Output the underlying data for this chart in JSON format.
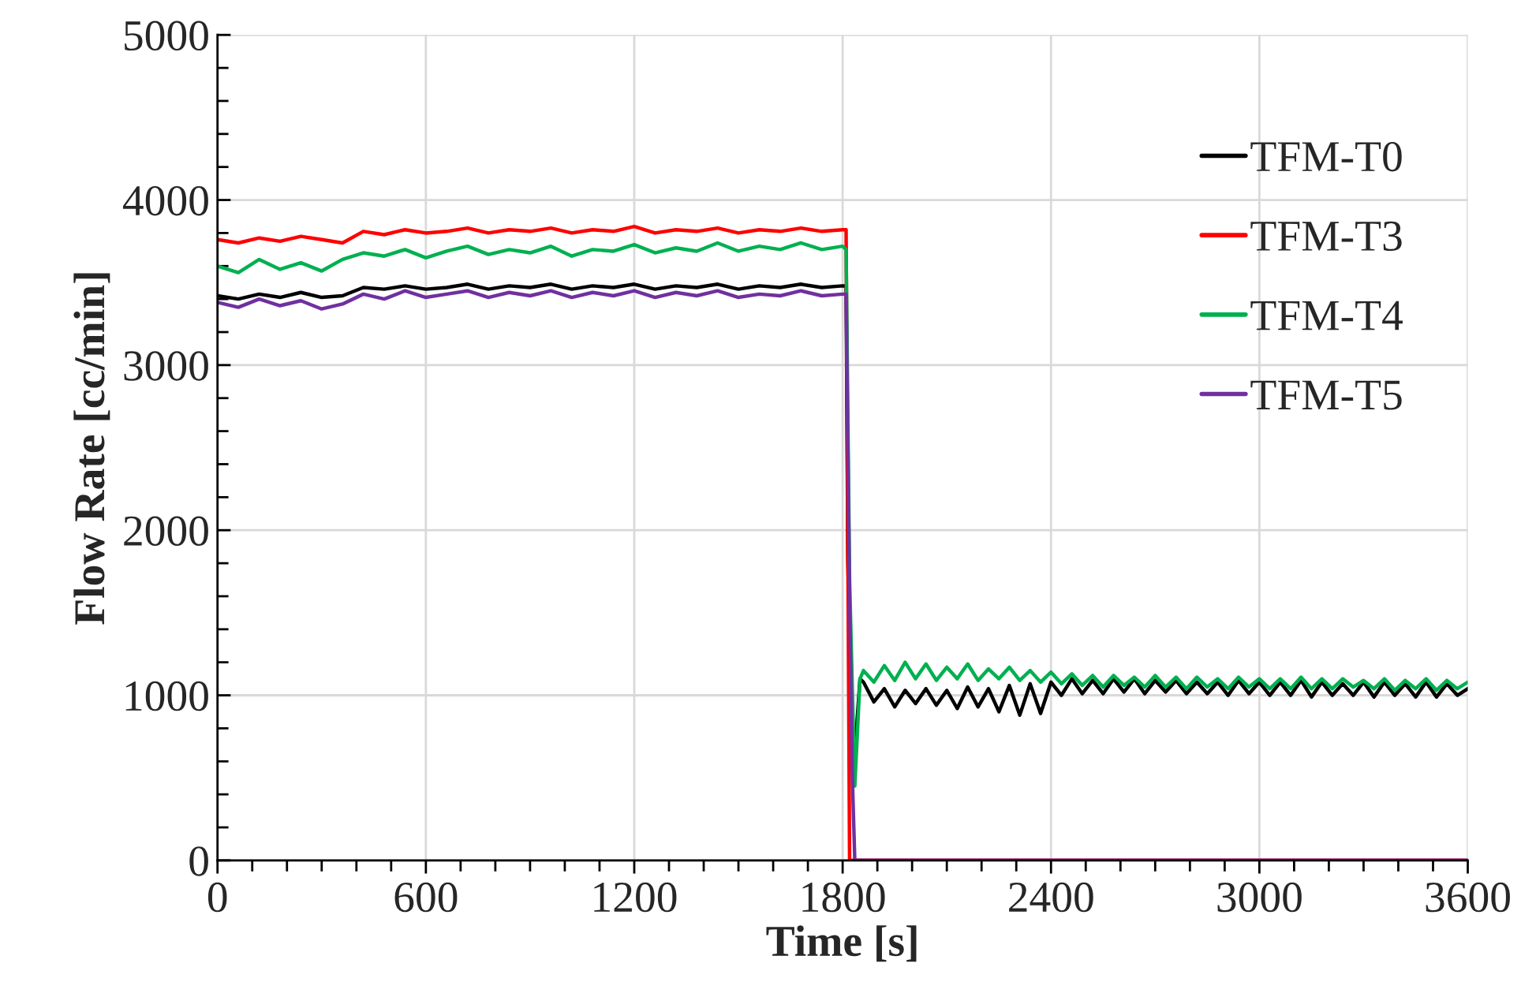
{
  "chart_data": {
    "type": "line",
    "xlabel": "Time [s]",
    "ylabel": "Flow Rate [cc/min]",
    "xlim": [
      0,
      3600
    ],
    "ylim": [
      0,
      5000
    ],
    "xticks": [
      0,
      {
        "value": 100,
        "label": null
      },
      {
        "value": 200,
        "label": null
      },
      {
        "value": 300,
        "label": null
      },
      {
        "value": 400,
        "label": null
      },
      {
        "value": 500,
        "label": null
      },
      600,
      {
        "value": 700,
        "label": null
      },
      {
        "value": 800,
        "label": null
      },
      {
        "value": 900,
        "label": null
      },
      {
        "value": 1000,
        "label": null
      },
      {
        "value": 1100,
        "label": null
      },
      1200,
      {
        "value": 1300,
        "label": null
      },
      {
        "value": 1400,
        "label": null
      },
      {
        "value": 1500,
        "label": null
      },
      {
        "value": 1600,
        "label": null
      },
      {
        "value": 1700,
        "label": null
      },
      1800,
      {
        "value": 1900,
        "label": null
      },
      {
        "value": 2000,
        "label": null
      },
      {
        "value": 2100,
        "label": null
      },
      {
        "value": 2200,
        "label": null
      },
      {
        "value": 2300,
        "label": null
      },
      2400,
      {
        "value": 2500,
        "label": null
      },
      {
        "value": 2600,
        "label": null
      },
      {
        "value": 2700,
        "label": null
      },
      {
        "value": 2800,
        "label": null
      },
      {
        "value": 2900,
        "label": null
      },
      3000,
      {
        "value": 3100,
        "label": null
      },
      {
        "value": 3200,
        "label": null
      },
      {
        "value": 3300,
        "label": null
      },
      {
        "value": 3400,
        "label": null
      },
      {
        "value": 3500,
        "label": null
      },
      3600
    ],
    "yticks": [
      0,
      {
        "value": 200,
        "label": null
      },
      {
        "value": 400,
        "label": null
      },
      {
        "value": 600,
        "label": null
      },
      {
        "value": 800,
        "label": null
      },
      1000,
      {
        "value": 1200,
        "label": null
      },
      {
        "value": 1400,
        "label": null
      },
      {
        "value": 1600,
        "label": null
      },
      {
        "value": 1800,
        "label": null
      },
      2000,
      {
        "value": 2200,
        "label": null
      },
      {
        "value": 2400,
        "label": null
      },
      {
        "value": 2600,
        "label": null
      },
      {
        "value": 2800,
        "label": null
      },
      3000,
      {
        "value": 3200,
        "label": null
      },
      {
        "value": 3400,
        "label": null
      },
      {
        "value": 3600,
        "label": null
      },
      {
        "value": 3800,
        "label": null
      },
      4000,
      {
        "value": 4200,
        "label": null
      },
      {
        "value": 4400,
        "label": null
      },
      {
        "value": 4600,
        "label": null
      },
      {
        "value": 4800,
        "label": null
      },
      5000
    ],
    "grid": true,
    "legend": "top right",
    "marker": "none",
    "line_style": "solid",
    "series": [
      {
        "name": "TFM-T0",
        "color": "#000000",
        "x": [
          0,
          60,
          120,
          180,
          240,
          300,
          360,
          420,
          480,
          540,
          600,
          660,
          720,
          780,
          840,
          900,
          960,
          1020,
          1080,
          1140,
          1200,
          1260,
          1320,
          1380,
          1440,
          1500,
          1560,
          1620,
          1680,
          1740,
          1800,
          1810,
          1815,
          1830,
          1850,
          1860,
          1890,
          1920,
          1950,
          1980,
          2010,
          2040,
          2070,
          2100,
          2130,
          2160,
          2190,
          2220,
          2250,
          2280,
          2310,
          2340,
          2370,
          2400,
          2430,
          2460,
          2490,
          2520,
          2550,
          2580,
          2610,
          2640,
          2670,
          2700,
          2730,
          2760,
          2790,
          2820,
          2850,
          2880,
          2910,
          2940,
          2970,
          3000,
          3030,
          3060,
          3090,
          3120,
          3150,
          3180,
          3210,
          3240,
          3270,
          3300,
          3330,
          3360,
          3390,
          3420,
          3450,
          3480,
          3510,
          3540,
          3570,
          3600
        ],
        "values": [
          3420,
          3400,
          3430,
          3410,
          3440,
          3410,
          3420,
          3470,
          3460,
          3480,
          3460,
          3470,
          3490,
          3460,
          3480,
          3470,
          3490,
          3460,
          3480,
          3470,
          3490,
          3460,
          3480,
          3470,
          3490,
          3460,
          3480,
          3470,
          3490,
          3470,
          3480,
          3480,
          1820,
          500,
          1100,
          1080,
          960,
          1040,
          930,
          1030,
          950,
          1040,
          940,
          1030,
          920,
          1050,
          930,
          1040,
          900,
          1060,
          880,
          1070,
          890,
          1080,
          1000,
          1100,
          1010,
          1090,
          1010,
          1100,
          1020,
          1100,
          1010,
          1090,
          1020,
          1090,
          1010,
          1080,
          1010,
          1080,
          1000,
          1090,
          1010,
          1080,
          1000,
          1080,
          1000,
          1090,
          990,
          1080,
          1000,
          1070,
          1000,
          1080,
          990,
          1080,
          1000,
          1070,
          990,
          1080,
          990,
          1070,
          1000,
          1040
        ]
      },
      {
        "name": "TFM-T3",
        "color": "#ff0000",
        "x": [
          0,
          60,
          120,
          180,
          240,
          300,
          360,
          420,
          480,
          540,
          600,
          660,
          720,
          780,
          840,
          900,
          960,
          1020,
          1080,
          1140,
          1200,
          1260,
          1320,
          1380,
          1440,
          1500,
          1560,
          1620,
          1680,
          1740,
          1800,
          1810,
          1820,
          3600
        ],
        "values": [
          3760,
          3740,
          3770,
          3750,
          3780,
          3760,
          3740,
          3810,
          3790,
          3820,
          3800,
          3810,
          3830,
          3800,
          3820,
          3810,
          3830,
          3800,
          3820,
          3810,
          3840,
          3800,
          3820,
          3810,
          3830,
          3800,
          3820,
          3810,
          3830,
          3810,
          3820,
          3820,
          0,
          0
        ]
      },
      {
        "name": "TFM-T4",
        "color": "#00b050",
        "x": [
          0,
          60,
          120,
          180,
          240,
          300,
          360,
          420,
          480,
          540,
          600,
          660,
          720,
          780,
          840,
          900,
          960,
          1020,
          1080,
          1140,
          1200,
          1260,
          1320,
          1380,
          1440,
          1500,
          1560,
          1620,
          1680,
          1740,
          1800,
          1810,
          1820,
          1835,
          1850,
          1860,
          1890,
          1920,
          1950,
          1980,
          2010,
          2040,
          2070,
          2100,
          2130,
          2160,
          2190,
          2220,
          2250,
          2280,
          2310,
          2340,
          2370,
          2400,
          2430,
          2460,
          2490,
          2520,
          2550,
          2580,
          2610,
          2640,
          2670,
          2700,
          2730,
          2760,
          2790,
          2820,
          2850,
          2880,
          2910,
          2940,
          2970,
          3000,
          3030,
          3060,
          3090,
          3120,
          3150,
          3180,
          3210,
          3240,
          3270,
          3300,
          3330,
          3360,
          3390,
          3420,
          3450,
          3480,
          3510,
          3540,
          3570,
          3600
        ],
        "values": [
          3600,
          3560,
          3640,
          3580,
          3620,
          3570,
          3640,
          3680,
          3660,
          3700,
          3650,
          3690,
          3720,
          3670,
          3700,
          3680,
          3720,
          3660,
          3700,
          3690,
          3730,
          3680,
          3710,
          3690,
          3740,
          3690,
          3720,
          3700,
          3740,
          3700,
          3720,
          3700,
          1700,
          450,
          1100,
          1150,
          1080,
          1180,
          1090,
          1200,
          1100,
          1190,
          1090,
          1170,
          1100,
          1190,
          1090,
          1160,
          1100,
          1170,
          1090,
          1150,
          1080,
          1140,
          1070,
          1130,
          1060,
          1120,
          1050,
          1120,
          1060,
          1110,
          1050,
          1120,
          1050,
          1110,
          1040,
          1110,
          1050,
          1100,
          1040,
          1110,
          1050,
          1100,
          1040,
          1100,
          1040,
          1110,
          1040,
          1100,
          1040,
          1100,
          1050,
          1090,
          1040,
          1100,
          1030,
          1090,
          1040,
          1100,
          1030,
          1090,
          1040,
          1080
        ]
      },
      {
        "name": "TFM-T5",
        "color": "#7030a0",
        "x": [
          0,
          60,
          120,
          180,
          240,
          300,
          360,
          420,
          480,
          540,
          600,
          660,
          720,
          780,
          840,
          900,
          960,
          1020,
          1080,
          1140,
          1200,
          1260,
          1320,
          1380,
          1440,
          1500,
          1560,
          1620,
          1680,
          1740,
          1800,
          1810,
          1820,
          1828,
          1835,
          3600
        ],
        "values": [
          3380,
          3350,
          3400,
          3360,
          3390,
          3340,
          3370,
          3430,
          3400,
          3450,
          3410,
          3430,
          3450,
          3410,
          3440,
          3420,
          3450,
          3410,
          3440,
          3420,
          3450,
          3410,
          3440,
          3420,
          3450,
          3410,
          3430,
          3420,
          3450,
          3420,
          3430,
          3430,
          1600,
          500,
          0,
          0
        ]
      }
    ]
  }
}
